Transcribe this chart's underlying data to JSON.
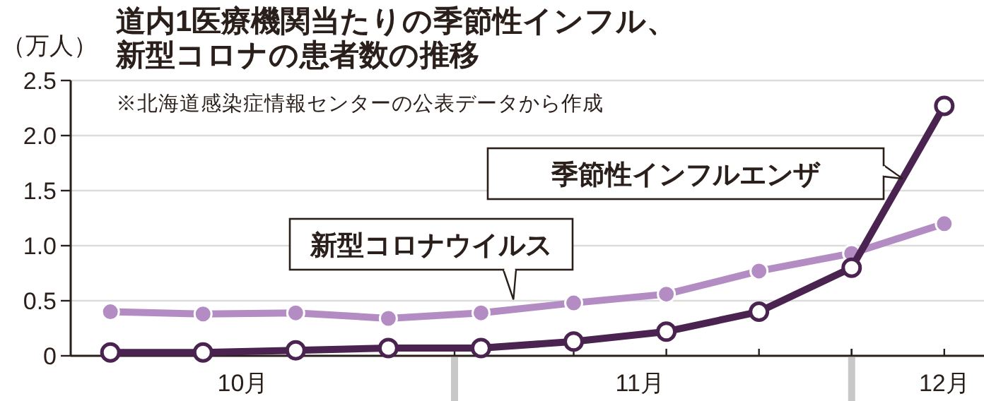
{
  "chart_data": {
    "type": "line",
    "title": "道内1医療機関当たりの季節性インフル、新型コロナの患者数の推移",
    "annotations": [
      "※北海道感染症情報センターの公表データから作成"
    ],
    "ylabel": "（万人）",
    "x": [
      "--10-06",
      "--10-13",
      "--10-20",
      "--10-27",
      "--11-03",
      "--11-10",
      "--11-17",
      "--11-24",
      "--12-01",
      "--12-08"
    ],
    "xlim": [
      "--10-03",
      "--12-11"
    ],
    "xticks": [
      {
        "value": "--10-16",
        "label": "10月"
      },
      {
        "value": "--11-01",
        "label": null
      },
      {
        "value": "--11-15",
        "label": "11月"
      },
      {
        "value": "--12-01",
        "label": null
      },
      {
        "value": "--12-08",
        "label": "12月"
      }
    ],
    "ylim": [
      0,
      2.5
    ],
    "yticks": [
      0,
      0.5,
      {
        "value": 1,
        "label": "1.0"
      },
      1.5,
      {
        "value": 2,
        "label": "2.0"
      },
      2.5
    ],
    "grid": "y",
    "legend": false,
    "marker": "circle",
    "line_style": "solid",
    "series": [
      {
        "name": "季節性インフルエンザ",
        "color": "#4a2350",
        "values": [
          0.03,
          0.03,
          0.05,
          0.07,
          0.07,
          0.13,
          0.22,
          0.4,
          0.8,
          2.27
        ]
      },
      {
        "name": "新型コロナウイルス",
        "color": "#b48cc4",
        "values": [
          0.4,
          0.38,
          0.39,
          0.34,
          0.39,
          0.48,
          0.56,
          0.77,
          0.93,
          1.2
        ]
      }
    ]
  }
}
